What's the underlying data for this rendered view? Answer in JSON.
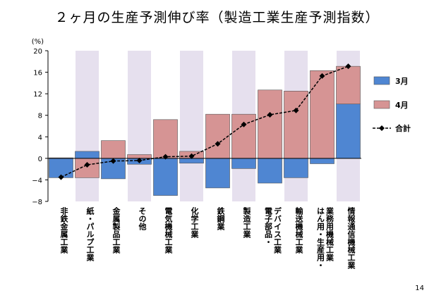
{
  "title": "２ヶ月の生産予測伸び率（製造工業生産予測指数）",
  "page_number": "14",
  "colors": {
    "band": "#e6e0ee",
    "s1": "#4f86d2",
    "s2": "#d69494",
    "line": "#000000"
  },
  "chart_data": {
    "type": "bar",
    "title": "２ヶ月の生産予測伸び率（製造工業生産予測指数）",
    "ylabel": "(%)",
    "xlabel": "",
    "ylim": [
      -8,
      20
    ],
    "yticks": [
      20,
      16,
      12,
      8,
      4,
      0,
      -4,
      -8
    ],
    "ytick_labels": [
      "20",
      "16",
      "12",
      "8",
      "4",
      "0",
      "−4",
      "−8"
    ],
    "grid": false,
    "legend": "right",
    "categories": [
      [
        "非鉄金属工業"
      ],
      [
        "紙・パルプ工業"
      ],
      [
        "金属製品工業"
      ],
      [
        "その他"
      ],
      [
        "電気機械工業"
      ],
      [
        "化学工業"
      ],
      [
        "鉄鋼業"
      ],
      [
        "製造工業"
      ],
      [
        "電子部品・",
        "デバイス工業"
      ],
      [
        "輸送機械工業"
      ],
      [
        "はん用・生産用・",
        "業務用機械工業"
      ],
      [
        "情報通信機械工業"
      ]
    ],
    "series": [
      {
        "name": "3月",
        "kind": "bar",
        "values": [
          -3.6,
          1.3,
          -3.8,
          -1.1,
          -6.9,
          -0.9,
          -5.5,
          -1.9,
          -4.6,
          -3.6,
          -1.0,
          10.1
        ]
      },
      {
        "name": "4月",
        "kind": "bar",
        "values": [
          0.1,
          -3.6,
          3.3,
          0.7,
          7.2,
          1.3,
          8.2,
          8.2,
          12.7,
          12.5,
          16.3,
          7.0
        ]
      },
      {
        "name": "合計",
        "kind": "line",
        "values": [
          -3.5,
          -1.2,
          -0.5,
          -0.4,
          0.3,
          0.4,
          2.7,
          6.3,
          8.1,
          8.9,
          15.3,
          17.1
        ]
      }
    ]
  }
}
